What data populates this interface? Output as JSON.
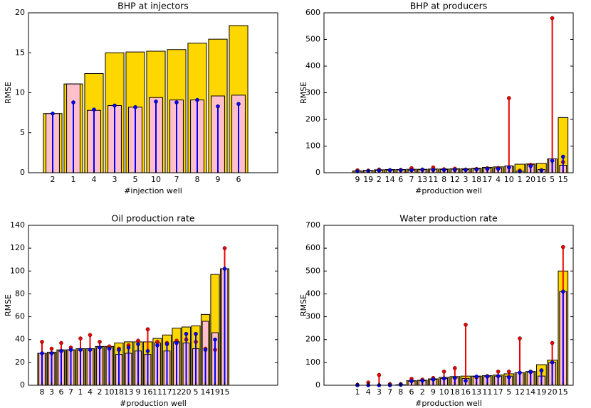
{
  "chart_data": [
    {
      "type": "bar",
      "title": "BHP at injectors",
      "xlabel": "#injection well",
      "ylabel": "RMSE",
      "categories": [
        "2",
        "1",
        "4",
        "3",
        "5",
        "10",
        "7",
        "8",
        "9",
        "6"
      ],
      "ylim": [
        0,
        20
      ],
      "yticks": [
        0,
        5,
        10,
        15,
        20
      ],
      "series": [
        {
          "kind": "bar",
          "color": "#ffd700",
          "values": [
            7.4,
            11.1,
            12.4,
            15.0,
            15.1,
            15.2,
            15.4,
            16.2,
            16.7,
            18.4
          ]
        },
        {
          "kind": "bar",
          "color": "#ffc0cb",
          "values": [
            7.4,
            11.1,
            7.8,
            8.4,
            8.2,
            9.4,
            9.1,
            9.1,
            9.6,
            9.7
          ]
        },
        {
          "kind": "stem",
          "color": "#0000ff",
          "values": [
            7.4,
            8.8,
            7.9,
            8.4,
            8.2,
            8.9,
            8.8,
            9.1,
            8.3,
            8.6
          ]
        }
      ]
    },
    {
      "type": "bar",
      "title": "BHP at producers",
      "xlabel": "#production well",
      "ylabel": "RMSE",
      "categories": [
        "9",
        "19",
        "2",
        "14",
        "6",
        "7",
        "13",
        "11",
        "8",
        "12",
        "3",
        "18",
        "17",
        "4",
        "10",
        "1",
        "20",
        "16",
        "5",
        "15"
      ],
      "ylim": [
        0,
        600
      ],
      "yticks": [
        0,
        100,
        200,
        300,
        400,
        500,
        600
      ],
      "series": [
        {
          "kind": "bar",
          "color": "#ffd700",
          "values": [
            7,
            9,
            11,
            12,
            12,
            13,
            13,
            14,
            14,
            15,
            15,
            17,
            20,
            22,
            24,
            32,
            33,
            35,
            52,
            207
          ]
        },
        {
          "kind": "bar",
          "color": "#ffc0cb",
          "values": [
            6,
            8,
            9,
            10,
            11,
            10,
            12,
            13,
            12,
            13,
            12,
            14,
            17,
            18,
            26,
            6,
            30,
            12,
            52,
            28
          ]
        },
        {
          "kind": "stem",
          "color": "#ee0000",
          "values": [
            9,
            8,
            12,
            10,
            11,
            17,
            12,
            20,
            13,
            15,
            12,
            14,
            17,
            18,
            280,
            8,
            30,
            10,
            580,
            40
          ]
        },
        {
          "kind": "stem",
          "color": "#0000ff",
          "values": [
            5,
            6,
            8,
            9,
            9,
            9,
            10,
            10,
            10,
            10,
            10,
            12,
            14,
            15,
            20,
            5,
            25,
            8,
            45,
            60
          ]
        }
      ]
    },
    {
      "type": "bar",
      "title": "Oil production rate",
      "xlabel": "#production well",
      "ylabel": "RMSE",
      "categories": [
        "8",
        "3",
        "6",
        "7",
        "1",
        "4",
        "2",
        "10",
        "18",
        "13",
        "9",
        "16",
        "11",
        "17",
        "12",
        "20",
        "5",
        "14",
        "19",
        "15"
      ],
      "ylim": [
        0,
        140
      ],
      "yticks": [
        0,
        20,
        40,
        60,
        80,
        100,
        120,
        140
      ],
      "series": [
        {
          "kind": "bar",
          "color": "#ffd700",
          "values": [
            28,
            29,
            31,
            31,
            32,
            32,
            34,
            34,
            37,
            38,
            38,
            38,
            41,
            44,
            50,
            51,
            52,
            62,
            97,
            102
          ]
        },
        {
          "kind": "bar",
          "color": "#ffc0cb",
          "values": [
            28,
            28,
            30,
            31,
            31,
            32,
            33,
            33,
            27,
            28,
            30,
            27,
            37,
            30,
            38,
            37,
            32,
            56,
            46,
            102
          ]
        },
        {
          "kind": "stem",
          "color": "#ee0000",
          "values": [
            38,
            32,
            37,
            33,
            41,
            44,
            38,
            34,
            32,
            35,
            39,
            49,
            38,
            37,
            39,
            40,
            38,
            32,
            31,
            120
          ]
        },
        {
          "kind": "stem",
          "color": "#0000ff",
          "values": [
            28,
            28,
            30,
            31,
            31,
            31,
            33,
            32,
            31,
            33,
            36,
            30,
            35,
            36,
            37,
            45,
            45,
            31,
            40,
            102
          ]
        }
      ]
    },
    {
      "type": "bar",
      "title": "Water production rate",
      "xlabel": "#production well",
      "ylabel": "RMSE",
      "categories": [
        "1",
        "4",
        "3",
        "7",
        "8",
        "6",
        "2",
        "9",
        "10",
        "18",
        "16",
        "13",
        "11",
        "17",
        "5",
        "12",
        "14",
        "19",
        "20",
        "15"
      ],
      "ylim": [
        0,
        700
      ],
      "yticks": [
        0,
        100,
        200,
        300,
        400,
        500,
        600,
        700
      ],
      "series": [
        {
          "kind": "bar",
          "color": "#ffd700",
          "values": [
            0,
            0,
            0,
            0,
            2,
            20,
            22,
            28,
            35,
            38,
            40,
            40,
            42,
            45,
            50,
            55,
            60,
            90,
            110,
            500
          ]
        },
        {
          "kind": "bar",
          "color": "#ffc0cb",
          "values": [
            0,
            0,
            0,
            0,
            2,
            18,
            20,
            25,
            30,
            32,
            30,
            38,
            38,
            40,
            40,
            55,
            58,
            40,
            100,
            410
          ]
        },
        {
          "kind": "stem",
          "color": "#ee0000",
          "values": [
            2,
            12,
            45,
            5,
            5,
            28,
            25,
            32,
            60,
            75,
            265,
            35,
            40,
            60,
            60,
            205,
            60,
            65,
            185,
            605
          ]
        },
        {
          "kind": "stem",
          "color": "#0000ff",
          "values": [
            0,
            0,
            0,
            0,
            2,
            18,
            20,
            25,
            30,
            32,
            20,
            38,
            38,
            40,
            35,
            55,
            58,
            65,
            100,
            410
          ]
        }
      ]
    }
  ]
}
